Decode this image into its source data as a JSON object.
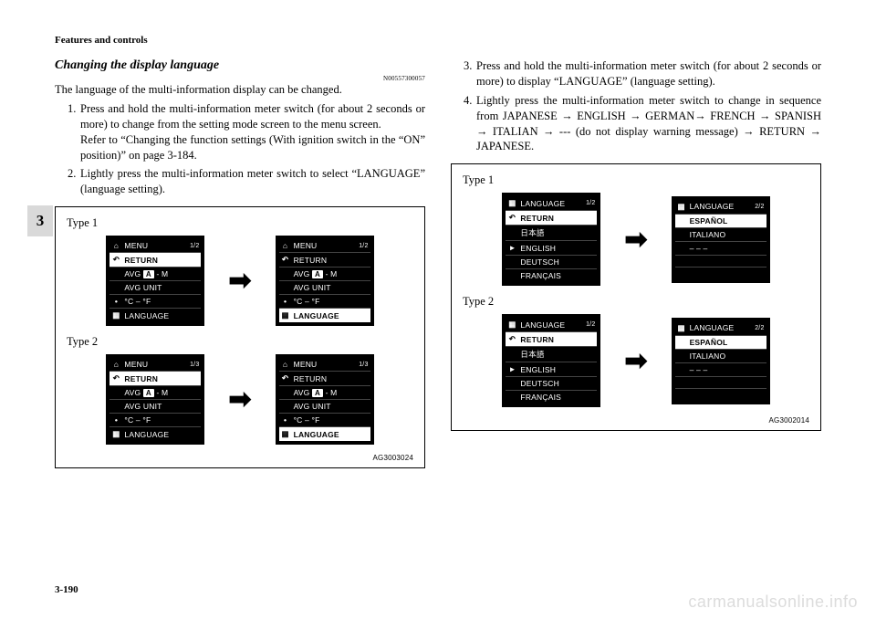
{
  "header": {
    "section": "Features and controls"
  },
  "sectionTab": "3",
  "pageNumber": "3-190",
  "watermark": "carmanualsonline.info",
  "left": {
    "subtitle": "Changing the display language",
    "docCode": "N00557300057",
    "intro": "The language of the multi-information display can be changed.",
    "steps": [
      {
        "num": "1.",
        "text": "Press and hold the multi-information meter switch (for about 2 seconds or more) to change from the setting mode screen to the menu screen.",
        "text2": "Refer to “Changing the function settings (With ignition switch in the “ON” position)” on page 3-184."
      },
      {
        "num": "2.",
        "text": "Lightly press the multi-information meter switch to select “LANGUAGE” (language setting)."
      }
    ],
    "figure": {
      "type1": "Type 1",
      "type2": "Type 2",
      "agCode": "AG3003024",
      "lcdA1": {
        "rows": [
          {
            "glyph": "⌂",
            "txt": "MENU",
            "rside": "1/2"
          },
          {
            "glyph": "↶",
            "txt": "RETURN",
            "hl": true
          },
          {
            "glyph": "",
            "txt": "AVG  A  -  M",
            "badgeA": true
          },
          {
            "glyph": "",
            "txt": "AVG UNIT"
          },
          {
            "glyph": "•",
            "txt": "°C – °F"
          },
          {
            "glyph": "▦",
            "txt": "LANGUAGE"
          }
        ]
      },
      "lcdA2": {
        "rows": [
          {
            "glyph": "⌂",
            "txt": "MENU",
            "rside": "1/2"
          },
          {
            "glyph": "↶",
            "txt": "RETURN"
          },
          {
            "glyph": "",
            "txt": "AVG  A  -  M",
            "badgeA": true
          },
          {
            "glyph": "",
            "txt": "AVG UNIT"
          },
          {
            "glyph": "•",
            "txt": "°C – °F"
          },
          {
            "glyph": "▦",
            "txt": "LANGUAGE",
            "hl": true
          }
        ]
      },
      "lcdB1": {
        "rows": [
          {
            "glyph": "⌂",
            "txt": "MENU",
            "rside": "1/3"
          },
          {
            "glyph": "↶",
            "txt": "RETURN",
            "hl": true
          },
          {
            "glyph": "",
            "txt": "AVG  A  -  M",
            "badgeA": true
          },
          {
            "glyph": "",
            "txt": "AVG  UNIT"
          },
          {
            "glyph": "•",
            "txt": "°C – °F"
          },
          {
            "glyph": "▦",
            "txt": "LANGUAGE"
          }
        ]
      },
      "lcdB2": {
        "rows": [
          {
            "glyph": "⌂",
            "txt": "MENU",
            "rside": "1/3"
          },
          {
            "glyph": "↶",
            "txt": "RETURN"
          },
          {
            "glyph": "",
            "txt": "AVG  A  -  M",
            "badgeA": true
          },
          {
            "glyph": "",
            "txt": "AVG  UNIT"
          },
          {
            "glyph": "•",
            "txt": "°C – °F"
          },
          {
            "glyph": "▦",
            "txt": "LANGUAGE",
            "hl": true
          }
        ]
      }
    }
  },
  "right": {
    "steps": [
      {
        "num": "3.",
        "text": "Press and hold the multi-information meter switch (for about 2 seconds or more) to display “LANGUAGE” (language setting)."
      },
      {
        "num": "4.",
        "text": "Lightly press the multi-information meter switch to change in sequence from JAPANESE → ENGLISH → GERMAN→ FRENCH → SPANISH → ITALIAN → --- (do not display warning message) → RETURN → JAPANESE."
      }
    ],
    "figure": {
      "type1": "Type 1",
      "type2": "Type 2",
      "agCode": "AG3002014",
      "lcdC1": {
        "rows": [
          {
            "glyph": "▦",
            "txt": "LANGUAGE",
            "rside": "1/2"
          },
          {
            "glyph": "↶",
            "txt": "RETURN",
            "hl": true
          },
          {
            "glyph": "",
            "txt": "日本語"
          },
          {
            "glyph": "▸",
            "txt": "ENGLISH"
          },
          {
            "glyph": "",
            "txt": "DEUTSCH"
          },
          {
            "glyph": "",
            "txt": "FRANÇAIS"
          }
        ]
      },
      "lcdC2": {
        "rows": [
          {
            "glyph": "▦",
            "txt": "LANGUAGE",
            "rside": "2/2"
          },
          {
            "glyph": "",
            "txt": "ESPAÑOL",
            "hl": true
          },
          {
            "glyph": "",
            "txt": "ITALIANO"
          },
          {
            "glyph": "",
            "txt": "–  –  –"
          },
          {
            "glyph": "",
            "txt": " "
          },
          {
            "glyph": "",
            "txt": " "
          }
        ]
      },
      "lcdD1": {
        "rows": [
          {
            "glyph": "▦",
            "txt": "LANGUAGE",
            "rside": "1/2"
          },
          {
            "glyph": "↶",
            "txt": "RETURN",
            "hl": true
          },
          {
            "glyph": "",
            "txt": "日本語"
          },
          {
            "glyph": "▸",
            "txt": "ENGLISH"
          },
          {
            "glyph": "",
            "txt": "DEUTSCH"
          },
          {
            "glyph": "",
            "txt": "FRANÇAIS"
          }
        ]
      },
      "lcdD2": {
        "rows": [
          {
            "glyph": "▦",
            "txt": "LANGUAGE",
            "rside": "2/2"
          },
          {
            "glyph": "",
            "txt": "ESPAÑOL",
            "hl": true
          },
          {
            "glyph": "",
            "txt": "ITALIANO"
          },
          {
            "glyph": "",
            "txt": "–  –  –"
          },
          {
            "glyph": "",
            "txt": " "
          },
          {
            "glyph": "",
            "txt": " "
          }
        ]
      }
    }
  }
}
